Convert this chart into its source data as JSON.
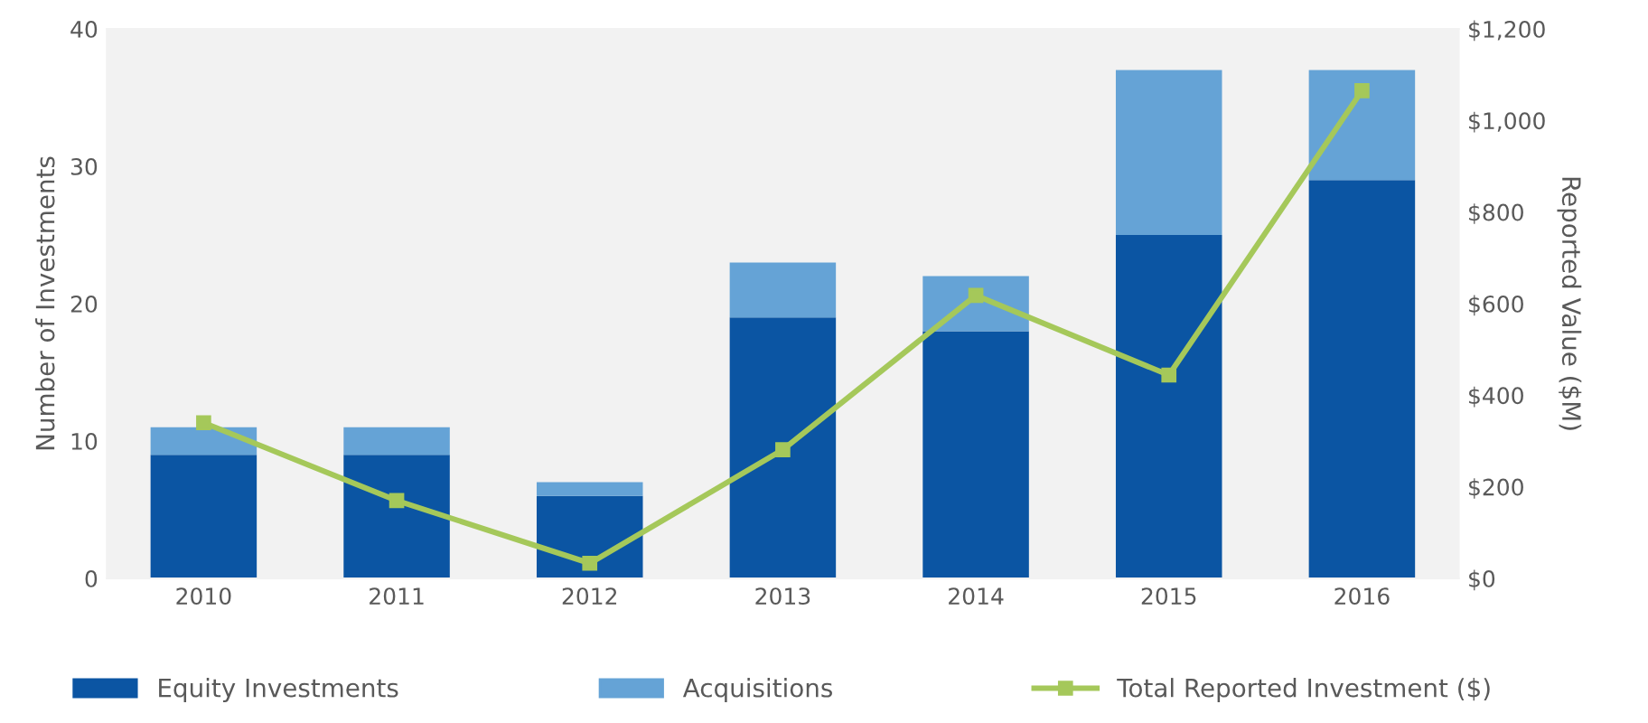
{
  "chart_data": {
    "type": "bar",
    "stacked": true,
    "categories": [
      "2010",
      "2011",
      "2012",
      "2013",
      "2014",
      "2015",
      "2016"
    ],
    "series": [
      {
        "name": "Equity Investments",
        "color": "#0b55a3",
        "values": [
          9,
          9,
          6,
          19,
          18,
          25,
          29
        ]
      },
      {
        "name": "Acquisitions",
        "color": "#65a3d6",
        "values": [
          2,
          2,
          1,
          4,
          4,
          12,
          8
        ]
      },
      {
        "name": "Total Reported Investment ($)",
        "type": "line",
        "axis": "y2",
        "color": "#a5c85a",
        "marker": "square",
        "values": [
          340,
          170,
          33,
          281,
          618,
          444,
          1065
        ]
      }
    ],
    "ylabel": "Number of Investments",
    "y2label": "Reported Value ($M)",
    "ylim": [
      0,
      40
    ],
    "yticks": [
      0,
      10,
      20,
      30,
      40
    ],
    "y2lim": [
      0,
      1200
    ],
    "y2ticks": [
      {
        "value": 0,
        "label": "$0"
      },
      {
        "value": 200,
        "label": "$200"
      },
      {
        "value": 400,
        "label": "$400"
      },
      {
        "value": 600,
        "label": "$600"
      },
      {
        "value": 800,
        "label": "$800"
      },
      {
        "value": 1000,
        "label": "$1,000"
      },
      {
        "value": 1200,
        "label": "$1,200"
      }
    ],
    "grid": false,
    "legend": "bottom"
  }
}
